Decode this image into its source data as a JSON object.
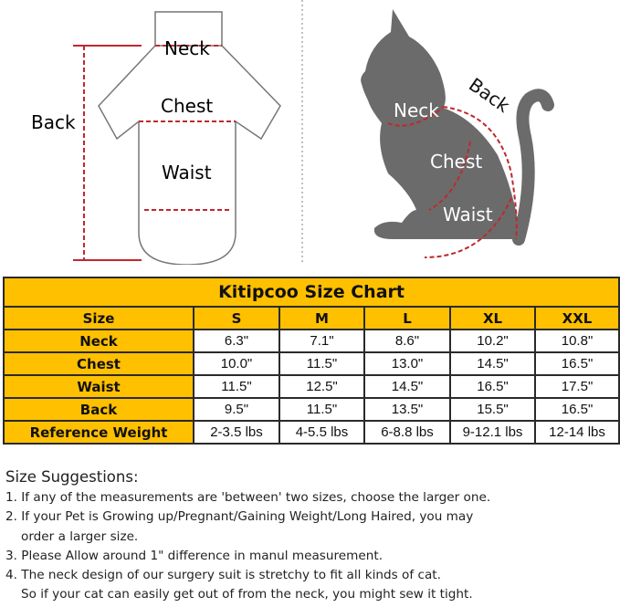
{
  "diagram": {
    "shirt_labels": {
      "neck": "Neck",
      "chest": "Chest",
      "waist": "Waist",
      "back": "Back"
    },
    "cat_labels": {
      "neck": "Neck",
      "chest": "Chest",
      "waist": "Waist",
      "back": "Back"
    },
    "colors": {
      "measure_line": "#c0282d",
      "cat": "#6b6b6b",
      "outline": "#666666"
    }
  },
  "chart": {
    "title": "Kitipcoo Size Chart",
    "header_color": "#FFC000",
    "columns": [
      "Size",
      "S",
      "M",
      "L",
      "XL",
      "XXL"
    ],
    "rows": [
      {
        "label": "Neck",
        "values": [
          "6.3\"",
          "7.1\"",
          "8.6\"",
          "10.2\"",
          "10.8\""
        ]
      },
      {
        "label": "Chest",
        "values": [
          "10.0\"",
          "11.5\"",
          "13.0\"",
          "14.5\"",
          "16.5\""
        ]
      },
      {
        "label": "Waist",
        "values": [
          "11.5\"",
          "12.5\"",
          "14.5\"",
          "16.5\"",
          "17.5\""
        ]
      },
      {
        "label": "Back",
        "values": [
          "9.5\"",
          "11.5\"",
          "13.5\"",
          "15.5\"",
          "16.5\""
        ]
      },
      {
        "label": "Reference Weight",
        "values": [
          "2-3.5 lbs",
          "4-5.5 lbs",
          "6-8.8 lbs",
          "9-12.1 lbs",
          "12-14 lbs"
        ]
      }
    ]
  },
  "notes": {
    "heading": "Size Suggestions:",
    "items": [
      "1. If any of the measurements are 'between' two sizes, choose the larger one.",
      "2. If your Pet is Growing up/Pregnant/Gaining Weight/Long Haired, you may",
      "order a larger size.",
      "3. Please Allow around 1\" difference in manul measurement.",
      "4. The neck design of our surgery suit is stretchy to fit all kinds of cat.",
      "So if your cat can easily get out of from the neck, you might sew it tight."
    ]
  }
}
